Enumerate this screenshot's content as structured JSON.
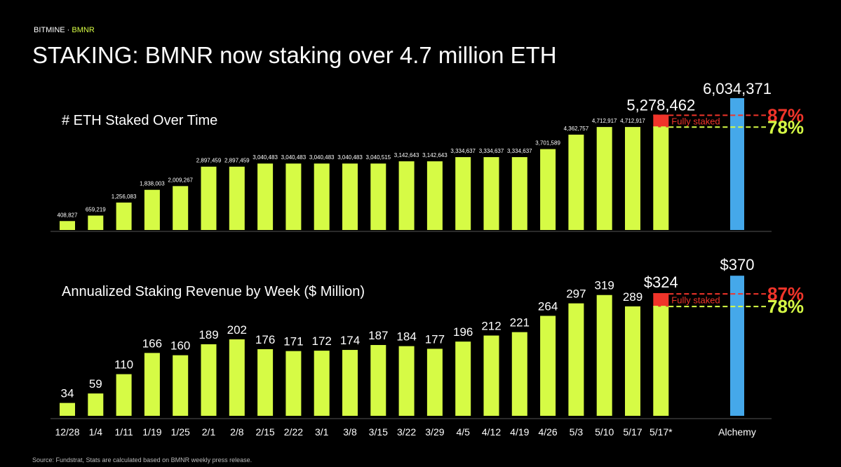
{
  "header": {
    "brand": "BITMINE ·",
    "ticker": "BMNR",
    "title": "STAKING: BMNR now staking over 4.7 million ETH"
  },
  "chart_data": [
    {
      "type": "bar",
      "title": "# ETH Staked Over Time",
      "values": [
        408827,
        659219,
        1256083,
        1838003,
        2009267,
        2897459,
        2897459,
        3040483,
        3040483,
        3040483,
        3040483,
        3040515,
        3142643,
        3142643,
        3334637,
        3334637,
        3334637,
        3701589,
        4362757,
        4712917,
        4712917,
        5278462,
        6034371
      ],
      "value_labels": [
        "408,827",
        "659,219",
        "1,256,083",
        "1,838,003",
        "2,009,267",
        "2,897,459",
        "2,897,459",
        "3,040,483",
        "3,040,483",
        "3,040,483",
        "3,040,483",
        "3,040,515",
        "3,142,643",
        "3,142,643",
        "3,334,637",
        "3,334,637",
        "3,334,637",
        "3,701,589",
        "4,362,757",
        "4,712,917",
        "4,712,917",
        "5,278,462",
        "6,034,371"
      ],
      "color": "#d6fb45",
      "highlight_color": "#f0342a",
      "reference_color": "#45a8ea",
      "ylim": [
        0,
        6000000
      ],
      "ref_lines": [
        {
          "value": 87,
          "label": "87%",
          "color": "#f0342a"
        },
        {
          "value": 78,
          "label": "78%",
          "color": "#d6fb45"
        }
      ],
      "annotation": "Fully staked"
    },
    {
      "type": "bar",
      "title": "Annualized Staking Revenue by Week ($ Million)",
      "categories": [
        "12/28",
        "1/4",
        "1/11",
        "1/19",
        "1/25",
        "2/1",
        "2/8",
        "2/15",
        "2/22",
        "3/1",
        "3/8",
        "3/15",
        "3/22",
        "3/29",
        "4/5",
        "4/12",
        "4/19",
        "4/26",
        "5/3",
        "5/10",
        "5/17",
        "5/17*",
        "Alchemy"
      ],
      "values": [
        34,
        59,
        110,
        166,
        160,
        189,
        202,
        176,
        171,
        172,
        174,
        187,
        184,
        177,
        196,
        212,
        221,
        264,
        297,
        319,
        289,
        324,
        370
      ],
      "value_labels": [
        "34",
        "59",
        "110",
        "166",
        "160",
        "189",
        "202",
        "176",
        "171",
        "172",
        "174",
        "187",
        "184",
        "177",
        "196",
        "212",
        "221",
        "264",
        "297",
        "319",
        "289",
        "$324",
        "$370"
      ],
      "color": "#d6fb45",
      "highlight_color": "#f0342a",
      "reference_color": "#45a8ea",
      "ylim": [
        0,
        400
      ],
      "ref_lines": [
        {
          "value": 87,
          "label": "87%",
          "color": "#f0342a"
        },
        {
          "value": 78,
          "label": "78%",
          "color": "#d6fb45"
        }
      ],
      "annotation": "Fully staked"
    }
  ],
  "footer": "Source: Fundstrat, Stats are calculated based on BMNR weekly press release."
}
